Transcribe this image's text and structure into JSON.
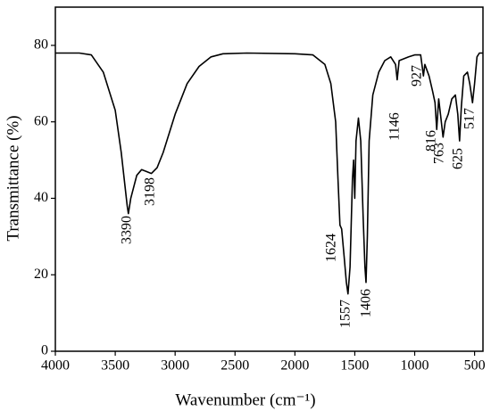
{
  "chart_data": {
    "type": "line",
    "xlabel": "Wavenumber (cm⁻¹)",
    "ylabel": "Transmittance (%)",
    "xlim": [
      4000,
      430
    ],
    "ylim": [
      0,
      90
    ],
    "xticks": [
      4000,
      3500,
      3000,
      2500,
      2000,
      1500,
      1000,
      500
    ],
    "yticks": [
      0,
      20,
      40,
      60,
      80
    ],
    "series": [
      {
        "color": "#000000",
        "x": [
          4000,
          3800,
          3700,
          3600,
          3500,
          3450,
          3400,
          3390,
          3370,
          3320,
          3280,
          3240,
          3198,
          3150,
          3100,
          3000,
          2900,
          2800,
          2700,
          2600,
          2400,
          2000,
          1850,
          1750,
          1700,
          1660,
          1640,
          1624,
          1610,
          1590,
          1570,
          1557,
          1540,
          1520,
          1510,
          1500,
          1490,
          1470,
          1450,
          1430,
          1415,
          1406,
          1395,
          1380,
          1350,
          1300,
          1250,
          1200,
          1160,
          1146,
          1130,
          1050,
          1000,
          950,
          935,
          927,
          915,
          880,
          850,
          830,
          816,
          800,
          785,
          763,
          745,
          720,
          690,
          660,
          640,
          625,
          610,
          590,
          560,
          540,
          517,
          500,
          480,
          460,
          430
        ],
        "values": [
          78,
          78,
          77.5,
          73,
          63,
          52,
          38,
          36,
          40,
          46,
          47.5,
          47,
          46.5,
          48,
          52,
          62,
          70,
          74.5,
          77,
          77.8,
          78,
          77.8,
          77.5,
          75,
          70,
          60,
          45,
          33,
          32,
          25,
          18,
          15,
          22,
          45,
          50,
          40,
          55,
          61,
          55,
          35,
          22,
          18,
          30,
          55,
          67,
          73,
          76,
          77,
          75,
          71,
          76,
          77,
          77.5,
          77.5,
          74,
          72,
          75,
          72,
          68,
          65,
          58,
          66,
          62,
          56,
          60,
          62,
          66,
          67,
          62,
          55,
          64,
          72,
          73,
          70,
          65,
          70,
          77,
          78,
          78
        ]
      }
    ],
    "annotations": [
      "3390",
      "3198",
      "1624",
      "1557",
      "1406",
      "1146",
      "927",
      "816",
      "763",
      "625",
      "517"
    ]
  }
}
